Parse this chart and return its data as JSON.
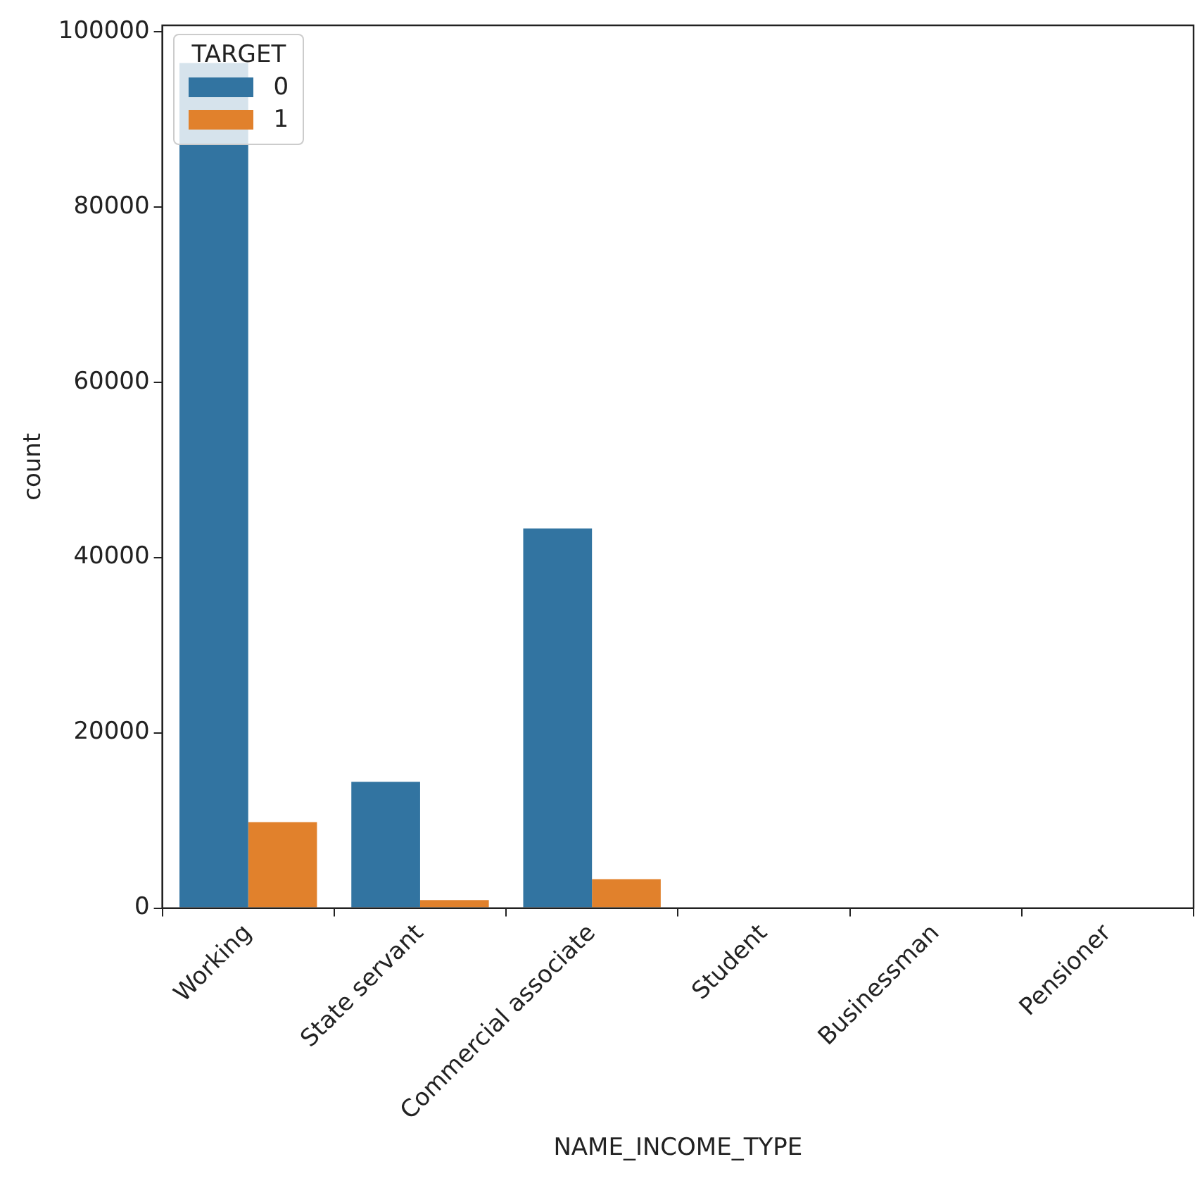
{
  "chart_data": {
    "type": "bar",
    "xlabel": "NAME_INCOME_TYPE",
    "ylabel": "count",
    "legend_title": "TARGET",
    "legend": "top left",
    "grid": false,
    "categories": [
      "Working",
      "State servant",
      "Commercial associate",
      "Student",
      "Businessman",
      "Pensioner"
    ],
    "series": [
      {
        "name": "0",
        "color": "#3274a1",
        "values": [
          96400,
          14400,
          43300,
          0,
          0,
          0
        ]
      },
      {
        "name": "1",
        "color": "#e1812c",
        "values": [
          9800,
          900,
          3300,
          0,
          0,
          0
        ]
      }
    ],
    "ylim": [
      0,
      100700
    ],
    "yticks": [
      0,
      20000,
      40000,
      60000,
      80000,
      100000
    ]
  }
}
